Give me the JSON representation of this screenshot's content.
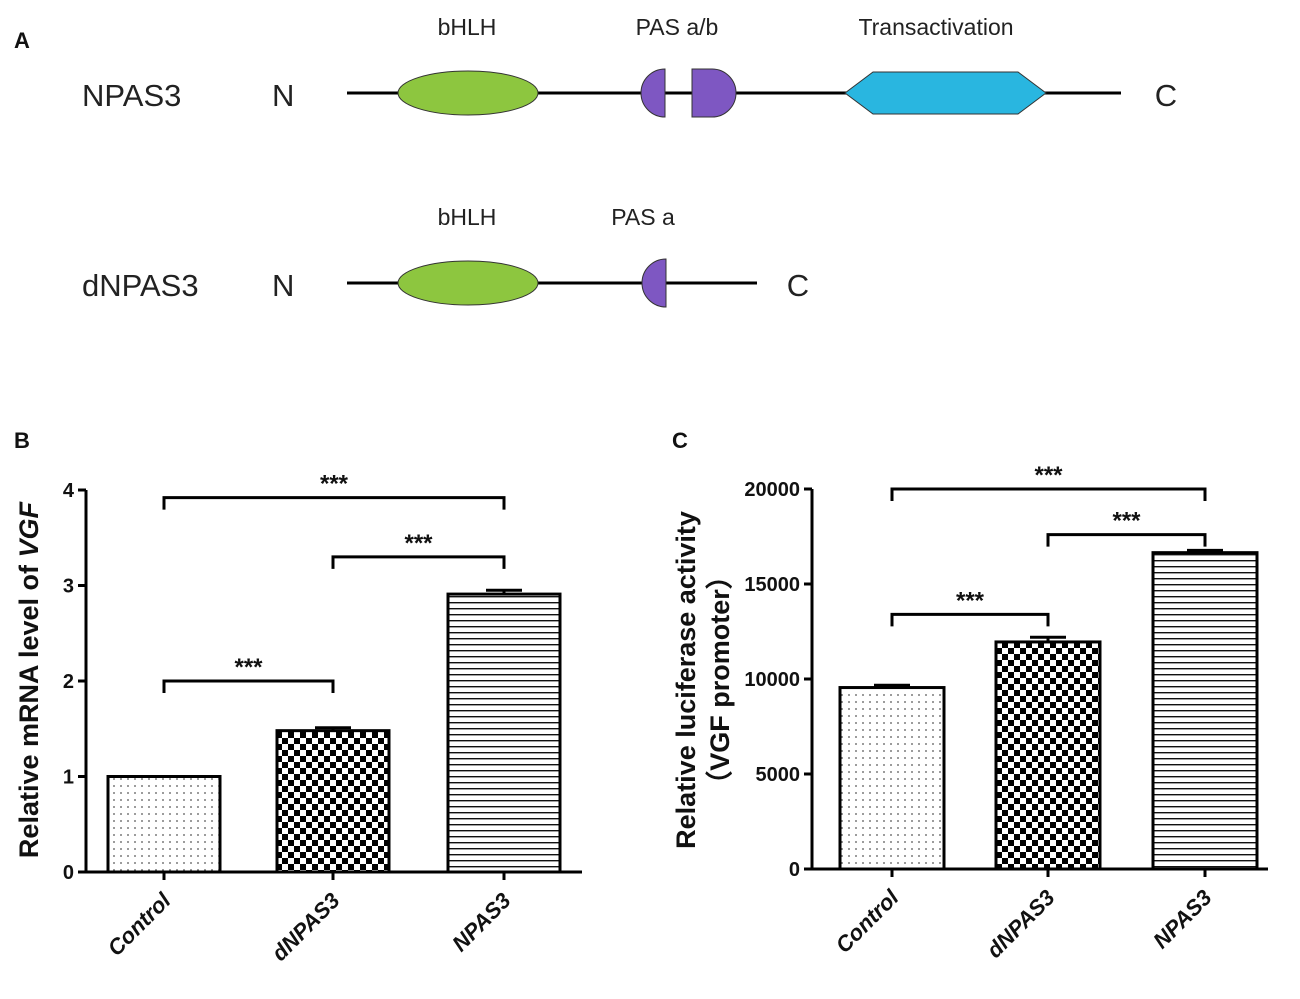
{
  "panel_a": {
    "label": "A",
    "constructs": [
      {
        "name": "NPAS3",
        "n_label": "N",
        "c_label": "C",
        "domains": [
          {
            "kind": "bhlh",
            "label": "bHLH",
            "color": "#8dc63f"
          },
          {
            "kind": "pas",
            "label": "PAS a/b",
            "color": "#7e57c2"
          },
          {
            "kind": "trans",
            "label": "Transactivation",
            "color": "#29b6e0"
          }
        ]
      },
      {
        "name": "dNPAS3",
        "n_label": "N",
        "c_label": "C",
        "domains": [
          {
            "kind": "bhlh",
            "label": "bHLH",
            "color": "#8dc63f"
          },
          {
            "kind": "pas",
            "label": "PAS a",
            "color": "#7e57c2"
          }
        ]
      }
    ]
  },
  "chart_data": [
    {
      "type": "bar",
      "panel": "B",
      "title": "",
      "categories": [
        "Control",
        "dNPAS3",
        "NPAS3"
      ],
      "values": [
        1.0,
        1.48,
        2.91
      ],
      "errors": [
        0.0,
        0.03,
        0.04
      ],
      "patterns": [
        "dots",
        "checker",
        "hlines"
      ],
      "ylabel_prefix": "Relative mRNA level of ",
      "ylabel_gene": "VGF",
      "ylim": [
        0,
        4
      ],
      "yticks": [
        "0",
        "1",
        "2",
        "3",
        "4"
      ],
      "significance": [
        {
          "from": 0,
          "to": 1,
          "label": "***",
          "y": 2.0
        },
        {
          "from": 1,
          "to": 2,
          "label": "***",
          "y": 3.3
        },
        {
          "from": 0,
          "to": 2,
          "label": "***",
          "y": 3.92
        }
      ]
    },
    {
      "type": "bar",
      "panel": "C",
      "title": "",
      "categories": [
        "Control",
        "dNPAS3",
        "NPAS3"
      ],
      "values": [
        9550,
        11950,
        16650
      ],
      "errors": [
        120,
        250,
        120
      ],
      "patterns": [
        "dots",
        "checker",
        "hlines"
      ],
      "ylabel": "Relative luciferase activity",
      "ylabel2": "（VGF promoter）",
      "ylim": [
        0,
        20000
      ],
      "yticks": [
        "0",
        "5000",
        "10000",
        "15000",
        "20000"
      ],
      "significance": [
        {
          "from": 0,
          "to": 1,
          "label": "***",
          "y": 13400
        },
        {
          "from": 1,
          "to": 2,
          "label": "***",
          "y": 17600
        },
        {
          "from": 0,
          "to": 2,
          "label": "***",
          "y": 20000
        }
      ]
    }
  ]
}
